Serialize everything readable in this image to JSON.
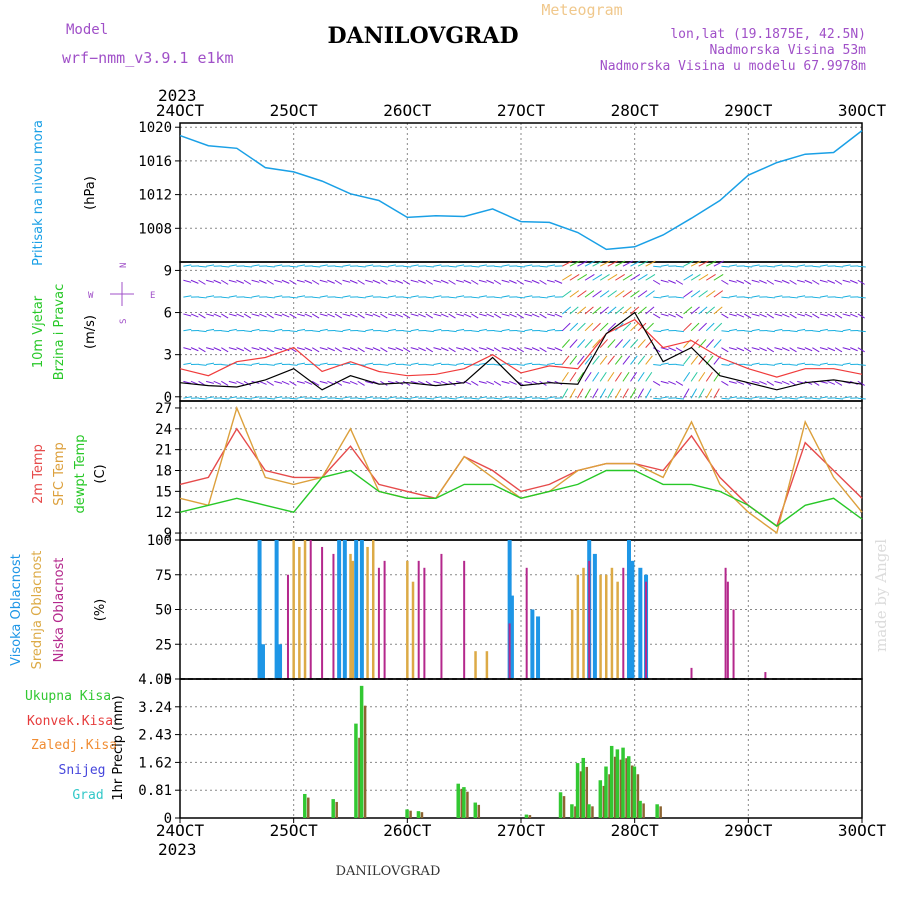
{
  "header": {
    "model_label": "Model",
    "model_name": "wrf−nmm_v3.9.1  e1km",
    "title": "DANILOVGRAD",
    "meteogram_label": "Meteogram",
    "lonlat": "lon,lat (19.1875E, 42.5N)",
    "elevation": "Nadmorska Visina 53m",
    "model_elevation": "Nadmorska Visina u modelu 67.9978m",
    "year_top": "2023",
    "year_bottom": "2023",
    "footer_title": "DANILOVGRAD",
    "watermark": "made by Angel"
  },
  "colors": {
    "pressure": "#1aa0e6",
    "temp2m": "#e64b4b",
    "sfc_temp": "#dca03c",
    "dewpoint": "#28c828",
    "high_cloud": "#1e96e6",
    "mid_cloud": "#dcaa46",
    "low_cloud": "#b4288c",
    "total_precip": "#32c832",
    "konvek": "#e63c3c",
    "zaledj": "#f08c32",
    "snow": "#4646dc",
    "grad": "#32c8c8",
    "wind_speed_line": "#000000",
    "wind_gust_line": "#f03c3c",
    "model_label": "#a050c8"
  },
  "chart_data": [
    {
      "type": "line",
      "panel": "pressure",
      "ylabel_main": "Pritisak na nivou mora",
      "ylabel_unit": "(hPa)",
      "ylim": [
        1004,
        1020.5
      ],
      "yticks": [
        "1008",
        "1012",
        "1016",
        "1020"
      ],
      "x_ticks": [
        "24OCT",
        "25OCT",
        "26OCT",
        "27OCT",
        "28OCT",
        "29OCT",
        "30OCT"
      ],
      "grid": true,
      "x": [
        0,
        0.25,
        0.5,
        0.75,
        1.0,
        1.25,
        1.5,
        1.75,
        2.0,
        2.25,
        2.5,
        2.75,
        3.0,
        3.25,
        3.5,
        3.75,
        4.0,
        4.25,
        4.5,
        4.75,
        5.0,
        5.25,
        5.5,
        5.75,
        6.0
      ],
      "series": [
        {
          "values": [
            1019.0,
            1017.8,
            1017.5,
            1015.2,
            1014.7,
            1013.6,
            1012.1,
            1011.3,
            1009.3,
            1009.5,
            1009.4,
            1010.3,
            1008.8,
            1008.7,
            1007.5,
            1005.5,
            1005.8,
            1007.2,
            1009.2,
            1011.3,
            1014.3,
            1015.8,
            1016.8,
            1017.0,
            1019.6
          ]
        }
      ]
    },
    {
      "type": "barbs",
      "panel": "wind",
      "ylabel_main": "10m Vjetar",
      "ylabel_sub": "Brzina i Pravac",
      "ylabel_unit": "(m/s)",
      "compass": {
        "n": "N",
        "s": "S",
        "e": "E",
        "w": "W"
      },
      "ylim": [
        -0.3,
        9.6
      ],
      "yticks": [
        "0",
        "3",
        "6",
        "9"
      ],
      "x": [
        0,
        0.25,
        0.5,
        0.75,
        1.0,
        1.25,
        1.5,
        1.75,
        2.0,
        2.25,
        2.5,
        2.75,
        3.0,
        3.25,
        3.5,
        3.75,
        4.0,
        4.25,
        4.5,
        4.75,
        5.0,
        5.25,
        5.5,
        5.75,
        6.0
      ],
      "speed": [
        1.0,
        0.8,
        0.7,
        1.2,
        2.0,
        0.5,
        1.5,
        0.9,
        1.0,
        0.8,
        1.0,
        2.8,
        0.8,
        1.0,
        0.9,
        4.5,
        6.0,
        2.5,
        3.5,
        1.5,
        1.0,
        0.5,
        1.0,
        1.2,
        0.9
      ],
      "gust": [
        2.0,
        1.5,
        2.5,
        2.8,
        3.5,
        1.8,
        2.5,
        1.8,
        1.5,
        1.6,
        2.0,
        3.0,
        1.7,
        2.2,
        2.0,
        4.5,
        5.5,
        3.5,
        4.0,
        2.8,
        2.0,
        1.4,
        2.0,
        2.0,
        1.6
      ]
    },
    {
      "type": "line",
      "panel": "temperature",
      "ylabel_main": "2m Temp",
      "ylabel_sub": "SFC Temp",
      "ylabel_sub2": "dewpt Temp",
      "ylabel_unit": "(C)",
      "ylim": [
        8,
        28
      ],
      "yticks": [
        "9",
        "12",
        "15",
        "18",
        "21",
        "24",
        "27"
      ],
      "x": [
        0,
        0.25,
        0.5,
        0.75,
        1.0,
        1.25,
        1.5,
        1.75,
        2.0,
        2.25,
        2.5,
        2.75,
        3.0,
        3.25,
        3.5,
        3.75,
        4.0,
        4.25,
        4.5,
        4.75,
        5.0,
        5.25,
        5.5,
        5.75,
        6.0
      ],
      "series": [
        {
          "name": "2m Temp",
          "values": [
            16,
            17,
            24,
            18,
            17,
            17,
            21.5,
            16,
            15,
            14,
            20,
            18,
            15,
            16,
            18,
            19,
            19,
            18,
            23,
            17,
            13,
            10,
            22,
            18,
            14
          ]
        },
        {
          "name": "SFC Temp",
          "values": [
            14,
            13,
            27,
            17,
            16,
            17,
            24,
            15,
            14,
            14,
            20,
            17,
            14,
            15,
            18,
            19,
            19,
            17,
            25,
            16,
            12,
            9,
            25,
            17,
            12
          ]
        },
        {
          "name": "dewpt Temp",
          "values": [
            12,
            13,
            14,
            13,
            12,
            17,
            18,
            15,
            14,
            14,
            16,
            16,
            14,
            15,
            16,
            18,
            18,
            16,
            16,
            15,
            13,
            10,
            13,
            14,
            11
          ]
        }
      ]
    },
    {
      "type": "bar",
      "panel": "clouds",
      "ylabel_main": "Visoka Oblacnost",
      "ylabel_sub": "Srednja Oblacnost",
      "ylabel_sub2": "Niska Oblacnost",
      "ylabel_unit": "(%)",
      "ylim": [
        0,
        100
      ],
      "yticks": [
        "0",
        "25",
        "50",
        "75",
        "100"
      ],
      "series": [
        {
          "name": "Visoka Oblacnost",
          "x": [
            0.7,
            0.73,
            0.85,
            0.88,
            1.4,
            1.45,
            1.55,
            1.6,
            2.9,
            2.92,
            3.1,
            3.15,
            3.6,
            3.65,
            3.95,
            3.98,
            4.05,
            4.1
          ],
          "values": [
            100,
            25,
            100,
            25,
            100,
            100,
            100,
            100,
            100,
            60,
            50,
            45,
            100,
            90,
            100,
            85,
            80,
            75
          ]
        },
        {
          "name": "Srednja Oblacnost",
          "x": [
            1.0,
            1.05,
            1.1,
            1.5,
            1.52,
            1.65,
            1.7,
            2.0,
            2.05,
            2.6,
            2.7,
            3.45,
            3.5,
            3.55,
            3.7,
            3.75,
            3.8,
            3.85
          ],
          "values": [
            100,
            95,
            100,
            90,
            85,
            95,
            100,
            85,
            70,
            20,
            20,
            50,
            75,
            80,
            75,
            75,
            80,
            70
          ]
        },
        {
          "name": "Niska Oblacnost",
          "x": [
            0.95,
            1.15,
            1.25,
            1.35,
            1.75,
            1.8,
            2.1,
            2.15,
            2.3,
            2.5,
            2.9,
            3.05,
            3.6,
            3.9,
            4.1,
            4.5,
            4.8,
            4.82,
            4.87,
            5.15
          ],
          "values": [
            75,
            100,
            95,
            90,
            80,
            85,
            85,
            80,
            90,
            85,
            40,
            80,
            85,
            80,
            70,
            8,
            80,
            70,
            50,
            5
          ]
        }
      ]
    },
    {
      "type": "bar",
      "panel": "precipitation",
      "ylabel_main": "1hr Precip (mm)",
      "legend": [
        "Ukupna Kisa",
        "Konvek.Kisa",
        "Zaledj.Kisa",
        "Snijeg",
        "Grad"
      ],
      "ylim": [
        0,
        4.05
      ],
      "yticks": [
        "0",
        "0.81",
        "1.62",
        "2.43",
        "3.24",
        "4.05"
      ],
      "x_ticks": [
        "24OCT",
        "25OCT",
        "26OCT",
        "27OCT",
        "28OCT",
        "29OCT",
        "30OCT"
      ],
      "x": [
        1.1,
        1.35,
        1.55,
        1.6,
        2.0,
        2.1,
        2.45,
        2.5,
        2.6,
        3.05,
        3.35,
        3.45,
        3.5,
        3.55,
        3.6,
        3.7,
        3.75,
        3.8,
        3.85,
        3.9,
        3.95,
        4.0,
        4.05,
        4.2
      ],
      "values": [
        0.7,
        0.55,
        2.75,
        3.85,
        0.25,
        0.2,
        1.0,
        0.9,
        0.45,
        0.1,
        0.75,
        0.4,
        1.6,
        1.75,
        0.4,
        1.1,
        1.5,
        2.1,
        2.0,
        2.05,
        1.8,
        1.5,
        0.5,
        0.4
      ]
    }
  ]
}
